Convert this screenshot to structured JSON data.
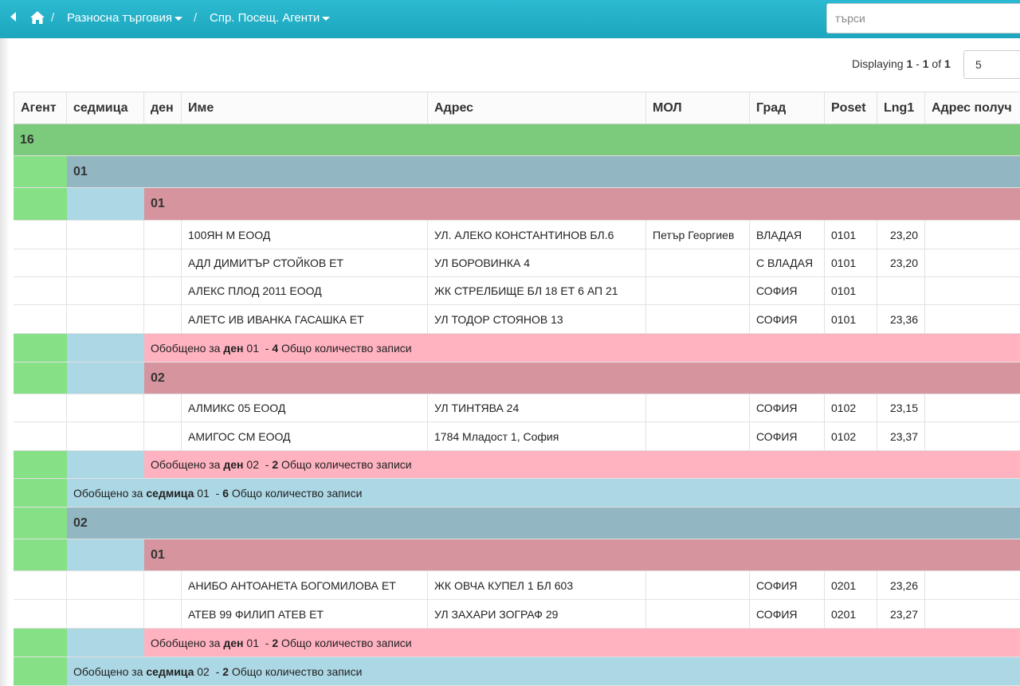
{
  "nav": {
    "crumb1": "Разносна търговия",
    "crumb2": "Спр. Посещ. Агенти",
    "separator": "/"
  },
  "search": {
    "placeholder": "търси"
  },
  "pager": {
    "prefix": "Displaying",
    "from": "1",
    "dash": "-",
    "to": "1",
    "of_label": "of",
    "total": "1",
    "page_size": "5"
  },
  "columns": {
    "agent": "Агент",
    "week": "седмица",
    "day": "ден",
    "name": "Име",
    "address": "Адрес",
    "mol": "МОЛ",
    "city": "Град",
    "poset": "Poset",
    "lng1": "Lng1",
    "recv_address": "Адрес получ"
  },
  "summary_text": {
    "prefix": "Обобщено за",
    "day": "ден",
    "week": "седмица",
    "suffix": "Общо количество записи"
  },
  "groups": {
    "agent": "16",
    "week1": "01",
    "week1_day1": "01",
    "week1_day2": "02",
    "week2": "02",
    "week2_day1": "01"
  },
  "rows": [
    {
      "name": "100ЯН М ЕООД",
      "address": "УЛ. АЛЕКО КОНСТАНТИНОВ БЛ.6",
      "mol": "Петър Георгиев",
      "city": "ВЛАДАЯ",
      "poset": "0101",
      "lng1": "23,20"
    },
    {
      "name": "АДЛ ДИМИТЪР СТОЙКОВ ЕТ",
      "address": "УЛ БОРОВИНКА 4",
      "mol": "",
      "city": "С ВЛАДАЯ",
      "poset": "0101",
      "lng1": "23,20"
    },
    {
      "name": "АЛЕКС ПЛОД 2011 ЕООД",
      "address": "ЖК СТРЕЛБИЩЕ БЛ 18 ЕТ 6 АП 21",
      "mol": "",
      "city": "СОФИЯ",
      "poset": "0101",
      "lng1": ""
    },
    {
      "name": "АЛЕТС ИВ ИВАНКА ГАСАШКА ЕТ",
      "address": "УЛ ТОДОР СТОЯНОВ 13",
      "mol": "",
      "city": "СОФИЯ",
      "poset": "0101",
      "lng1": "23,36"
    },
    {
      "name": "АЛМИКС 05 ЕООД",
      "address": "УЛ ТИНТЯВА 24",
      "mol": "",
      "city": "СОФИЯ",
      "poset": "0102",
      "lng1": "23,15"
    },
    {
      "name": "АМИГОС СМ ЕООД",
      "address": "1784 Младост 1, София",
      "mol": "",
      "city": "СОФИЯ",
      "poset": "0102",
      "lng1": "23,37"
    },
    {
      "name": "АНИБО АНТОАНЕТА БОГОМИЛОВА ЕТ",
      "address": "ЖК ОВЧА КУПЕЛ 1 БЛ 603",
      "mol": "",
      "city": "СОФИЯ",
      "poset": "0201",
      "lng1": "23,26"
    },
    {
      "name": "АТЕВ 99 ФИЛИП АТЕВ ЕТ",
      "address": "УЛ ЗАХАРИ ЗОГРАФ 29",
      "mol": "",
      "city": "СОФИЯ",
      "poset": "0201",
      "lng1": "23,27"
    }
  ],
  "summaries": {
    "w1d1": {
      "group": "01",
      "count": "4"
    },
    "w1d2": {
      "group": "02",
      "count": "2"
    },
    "w1": {
      "group": "01",
      "count": "6"
    },
    "w2d1": {
      "group": "01",
      "count": "2"
    },
    "w2": {
      "group": "02",
      "count": "2"
    }
  },
  "colors": {
    "topbar": "#1da6bd",
    "agent_group": "#7ccb7c",
    "week_group": "#92b7c3",
    "day_group": "#d6949e",
    "agent_fill": "#86e086",
    "week_fill": "#acd7e4",
    "day_fill": "#ffb2c0"
  }
}
